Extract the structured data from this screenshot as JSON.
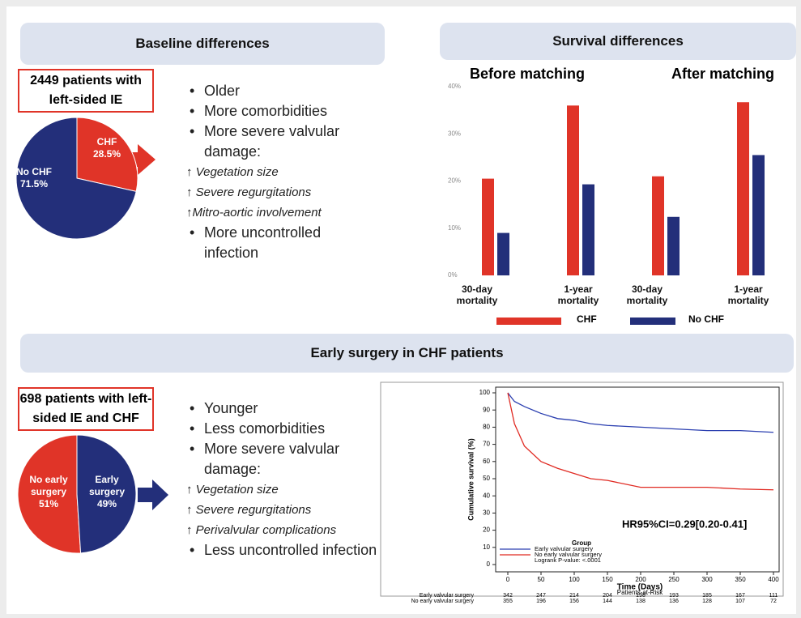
{
  "section1": {
    "title": "Baseline differences"
  },
  "section2": {
    "title": "Survival differences"
  },
  "section3": {
    "title": "Early surgery in CHF patients"
  },
  "box1": "2449 patients with left-sided IE",
  "box2": "698 patients with left-sided IE and CHF",
  "findings1": {
    "items_before": [
      "Older",
      "More comorbidities",
      "More severe valvular damage:"
    ],
    "details": [
      "↑ Vegetation size",
      "↑ Severe regurgitations",
      "↑Mitro-aortic involvement"
    ],
    "items_after": [
      "More uncontrolled infection"
    ]
  },
  "findings2": {
    "items_before": [
      "Younger",
      "Less comorbidities",
      "More severe valvular damage:"
    ],
    "details": [
      "↑ Vegetation size",
      "↑ Severe regurgitations",
      "↑ Perivalvular complications"
    ],
    "items_after": [
      "Less uncontrolled infection"
    ]
  },
  "chart_data": [
    {
      "type": "pie",
      "categories": [
        "CHF",
        "No CHF"
      ],
      "values": [
        28.5,
        71.5
      ],
      "value_labels": [
        "28.5%",
        "71.5%"
      ],
      "colors": [
        "#e03428",
        "#232f7a"
      ]
    },
    {
      "type": "bar",
      "groups": [
        "Before matching",
        "After matching"
      ],
      "categories": [
        "30-day mortality",
        "1-year mortality",
        "30-day mortality",
        "1-year mortality"
      ],
      "series": [
        {
          "name": "CHF",
          "color": "#e03428",
          "values": [
            20.5,
            36,
            21,
            36.7
          ]
        },
        {
          "name": "No CHF",
          "color": "#232f7a",
          "values": [
            9,
            19.3,
            12.4,
            25.5
          ]
        }
      ],
      "ylim": [
        0,
        40
      ],
      "yticks": [
        {
          "value": 0,
          "label": "0%"
        },
        {
          "value": 10,
          "label": "10%"
        },
        {
          "value": 20,
          "label": "20%"
        },
        {
          "value": 30,
          "label": "30%"
        },
        {
          "value": 40,
          "label": "40%"
        }
      ]
    },
    {
      "type": "pie",
      "categories": [
        "No early surgery",
        "Early surgery"
      ],
      "values": [
        51,
        49
      ],
      "value_labels": [
        "51%",
        "49%"
      ],
      "colors": [
        "#e03428",
        "#232f7a"
      ]
    },
    {
      "type": "line",
      "xlabel": "Time (Days)",
      "ylabel": "Cumulative survival (%)",
      "x": [
        0,
        10,
        25,
        50,
        75,
        100,
        125,
        150,
        200,
        250,
        300,
        350,
        400
      ],
      "series": [
        {
          "name": "Early valvular surgery",
          "color": "#2b3fb0",
          "values": [
            100,
            95,
            92,
            88,
            85,
            84,
            82,
            81,
            80,
            79,
            78,
            78,
            77
          ]
        },
        {
          "name": "No early valvular surgery",
          "color": "#e02a22",
          "values": [
            100,
            82,
            69,
            60,
            56,
            53,
            50,
            49,
            45,
            45,
            45,
            44,
            43.5
          ]
        }
      ],
      "xlim": [
        0,
        400
      ],
      "xticks": [
        0,
        50,
        100,
        150,
        200,
        250,
        300,
        350,
        400
      ],
      "ylim": [
        0,
        100
      ],
      "yticks": [
        0,
        10,
        20,
        30,
        40,
        50,
        60,
        70,
        80,
        90,
        100
      ],
      "legend_title": "Group",
      "annotations": [
        "Logrank P-value: <.0001",
        "HR95%CI=0.29[0.20-0.41]"
      ],
      "risk_table": {
        "title": "Patients-at-Risk",
        "rows": [
          {
            "name": "Early valvular surgery",
            "values": [
              342,
              247,
              214,
              204,
              198,
              193,
              185,
              167,
              111
            ]
          },
          {
            "name": "No early valvular surgery",
            "values": [
              355,
              196,
              156,
              144,
              138,
              136,
              128,
              107,
              72
            ]
          }
        ]
      }
    }
  ]
}
